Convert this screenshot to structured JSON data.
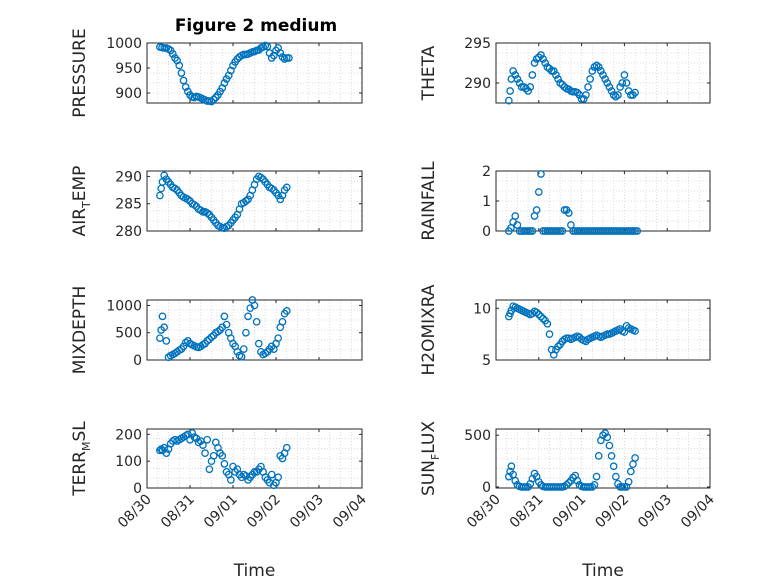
{
  "figure": {
    "title": "Figure 2 medium"
  },
  "style": {
    "marker_color": "#0072BD",
    "axis_color": "#262626",
    "grid_color": "#d3d3d3",
    "background": "#ffffff"
  },
  "chart_data": [
    {
      "id": "pressure",
      "type": "scatter",
      "ylabel": "PRESSURE",
      "xlabel": "",
      "xlim": [
        "08/30",
        "09/04"
      ],
      "ylim": [
        880,
        1000
      ],
      "yticks": [
        900,
        950,
        1000
      ],
      "xticks": [],
      "grid": true,
      "title": "Figure 2 medium",
      "x_days": [
        0.3,
        0.35,
        0.4,
        0.45,
        0.5,
        0.55,
        0.6,
        0.65,
        0.7,
        0.75,
        0.8,
        0.85,
        0.9,
        0.95,
        1.0,
        1.05,
        1.1,
        1.15,
        1.2,
        1.25,
        1.3,
        1.35,
        1.4,
        1.45,
        1.5,
        1.55,
        1.6,
        1.65,
        1.7,
        1.75,
        1.8,
        1.85,
        1.9,
        1.95,
        2.0,
        2.05,
        2.1,
        2.15,
        2.2,
        2.25,
        2.3,
        2.35,
        2.4,
        2.45,
        2.5,
        2.55,
        2.6,
        2.65,
        2.7,
        2.75,
        2.8,
        2.85,
        2.9,
        2.95,
        3.0,
        3.05,
        3.1,
        3.15,
        3.2,
        3.25,
        3.3
      ],
      "y": [
        992,
        991,
        990,
        990,
        988,
        985,
        978,
        970,
        965,
        955,
        940,
        925,
        912,
        903,
        896,
        892,
        891,
        893,
        892,
        890,
        888,
        886,
        884,
        884,
        883,
        887,
        891,
        896,
        903,
        910,
        920,
        928,
        935,
        945,
        955,
        962,
        968,
        972,
        975,
        977,
        977,
        978,
        980,
        982,
        983,
        985,
        986,
        990,
        992,
        995,
        993,
        980,
        970,
        975,
        985,
        990,
        980,
        972,
        968,
        970,
        970
      ]
    },
    {
      "id": "theta",
      "type": "scatter",
      "ylabel": "THETA",
      "xlabel": "",
      "xlim": [
        "08/30",
        "09/04"
      ],
      "ylim": [
        287.5,
        295
      ],
      "yticks": [
        290,
        295
      ],
      "xticks": [],
      "grid": true,
      "x_days": [
        0.3,
        0.33,
        0.36,
        0.4,
        0.45,
        0.5,
        0.55,
        0.6,
        0.65,
        0.7,
        0.75,
        0.8,
        0.85,
        0.9,
        0.95,
        1.0,
        1.05,
        1.1,
        1.15,
        1.2,
        1.25,
        1.3,
        1.35,
        1.4,
        1.45,
        1.5,
        1.55,
        1.6,
        1.65,
        1.7,
        1.75,
        1.8,
        1.85,
        1.9,
        1.95,
        2.0,
        2.05,
        2.1,
        2.15,
        2.2,
        2.25,
        2.3,
        2.35,
        2.4,
        2.45,
        2.5,
        2.55,
        2.6,
        2.65,
        2.7,
        2.75,
        2.8,
        2.85,
        2.9,
        2.95,
        3.0,
        3.05,
        3.1,
        3.15,
        3.2,
        3.25
      ],
      "y": [
        287.8,
        289,
        290.5,
        291.5,
        291,
        290.5,
        290,
        289.5,
        289.5,
        289.3,
        289,
        289.5,
        291,
        292.5,
        293,
        293.2,
        293.5,
        293,
        292.5,
        292,
        291.8,
        291.5,
        291.5,
        291,
        290.5,
        290,
        289.8,
        289.5,
        289.3,
        289.2,
        289,
        288.9,
        288.9,
        288.8,
        288.5,
        288,
        288,
        288.5,
        289.5,
        290.5,
        291.5,
        292,
        292.2,
        292,
        291.5,
        291,
        290.5,
        290,
        289.5,
        289,
        288.5,
        288.3,
        288.5,
        289.5,
        290,
        291,
        290,
        289,
        288.5,
        288.5,
        288.8
      ]
    },
    {
      "id": "air_temp",
      "type": "scatter",
      "ylabel": "AIR_TEMP",
      "xlabel": "",
      "xlim": [
        "08/30",
        "09/04"
      ],
      "ylim": [
        280,
        291
      ],
      "yticks": [
        280,
        285,
        290
      ],
      "xticks": [],
      "grid": true,
      "x_days": [
        0.3,
        0.33,
        0.36,
        0.4,
        0.45,
        0.5,
        0.55,
        0.6,
        0.65,
        0.7,
        0.75,
        0.8,
        0.85,
        0.9,
        0.95,
        1.0,
        1.05,
        1.1,
        1.15,
        1.2,
        1.25,
        1.3,
        1.35,
        1.4,
        1.45,
        1.5,
        1.55,
        1.6,
        1.65,
        1.7,
        1.75,
        1.8,
        1.85,
        1.9,
        1.95,
        2.0,
        2.05,
        2.1,
        2.15,
        2.2,
        2.25,
        2.3,
        2.35,
        2.4,
        2.45,
        2.5,
        2.55,
        2.6,
        2.65,
        2.7,
        2.75,
        2.8,
        2.85,
        2.9,
        2.95,
        3.0,
        3.05,
        3.1,
        3.15,
        3.2,
        3.25
      ],
      "y": [
        286.5,
        287.8,
        289,
        290.2,
        289.5,
        289,
        288.5,
        288,
        287.8,
        287.5,
        287,
        286.5,
        286.2,
        286,
        285.8,
        285.5,
        285,
        284.8,
        284.5,
        284,
        283.8,
        283.5,
        283.5,
        283.3,
        283,
        282.5,
        282,
        281.5,
        281,
        280.8,
        280.6,
        280.5,
        280.8,
        281,
        281.5,
        282,
        282.5,
        283,
        284,
        285,
        285.2,
        285.5,
        285.8,
        286.5,
        287.5,
        288.5,
        289.5,
        290,
        289.8,
        289.5,
        289,
        288.5,
        288,
        287.8,
        287.5,
        287,
        286.5,
        285.8,
        286.5,
        287.5,
        288
      ]
    },
    {
      "id": "rainfall",
      "type": "scatter",
      "ylabel": "RAINFALL",
      "xlabel": "",
      "xlim": [
        "08/30",
        "09/04"
      ],
      "ylim": [
        0,
        2
      ],
      "yticks": [
        0,
        1,
        2
      ],
      "xticks": [],
      "grid": true,
      "x_days": [
        0.3,
        0.35,
        0.4,
        0.45,
        0.5,
        0.55,
        0.6,
        0.65,
        0.7,
        0.75,
        0.8,
        0.85,
        0.9,
        0.95,
        1.0,
        1.05,
        1.1,
        1.15,
        1.2,
        1.25,
        1.3,
        1.35,
        1.4,
        1.45,
        1.5,
        1.55,
        1.6,
        1.65,
        1.7,
        1.75,
        1.8,
        1.85,
        1.9,
        1.95,
        2.0,
        2.05,
        2.1,
        2.15,
        2.2,
        2.25,
        2.3,
        2.35,
        2.4,
        2.45,
        2.5,
        2.55,
        2.6,
        2.65,
        2.7,
        2.75,
        2.8,
        2.85,
        2.9,
        2.95,
        3.0,
        3.05,
        3.1,
        3.15,
        3.2,
        3.25,
        3.3
      ],
      "y": [
        0,
        0.1,
        0.3,
        0.5,
        0.2,
        0,
        0,
        0,
        0,
        0,
        0,
        0,
        0.5,
        0.7,
        1.3,
        1.9,
        0,
        0,
        0,
        0,
        0,
        0,
        0,
        0,
        0,
        0,
        0.7,
        0.7,
        0.6,
        0.2,
        0,
        0,
        0,
        0,
        0,
        0,
        0,
        0,
        0,
        0,
        0,
        0,
        0,
        0,
        0,
        0,
        0,
        0,
        0,
        0,
        0,
        0,
        0,
        0,
        0,
        0,
        0,
        0,
        0,
        0,
        0
      ]
    },
    {
      "id": "mixdepth",
      "type": "scatter",
      "ylabel": "MIXDEPTH",
      "xlabel": "",
      "xlim": [
        "08/30",
        "09/04"
      ],
      "ylim": [
        0,
        1100
      ],
      "yticks": [
        0,
        500,
        1000
      ],
      "xticks": [],
      "grid": true,
      "x_days": [
        0.3,
        0.33,
        0.36,
        0.4,
        0.45,
        0.5,
        0.55,
        0.6,
        0.65,
        0.7,
        0.75,
        0.8,
        0.85,
        0.9,
        0.95,
        1.0,
        1.05,
        1.1,
        1.15,
        1.2,
        1.25,
        1.3,
        1.35,
        1.4,
        1.45,
        1.5,
        1.55,
        1.6,
        1.65,
        1.7,
        1.75,
        1.8,
        1.85,
        1.9,
        1.95,
        2.0,
        2.05,
        2.1,
        2.15,
        2.2,
        2.25,
        2.3,
        2.35,
        2.4,
        2.45,
        2.5,
        2.55,
        2.6,
        2.65,
        2.7,
        2.75,
        2.8,
        2.85,
        2.9,
        2.95,
        3.0,
        3.05,
        3.1,
        3.15,
        3.2,
        3.25
      ],
      "y": [
        400,
        550,
        800,
        600,
        350,
        50,
        80,
        100,
        120,
        150,
        180,
        200,
        250,
        320,
        350,
        300,
        280,
        260,
        240,
        230,
        250,
        280,
        300,
        350,
        380,
        420,
        450,
        500,
        520,
        550,
        600,
        800,
        650,
        500,
        400,
        300,
        250,
        150,
        80,
        60,
        200,
        500,
        800,
        950,
        1100,
        1000,
        700,
        300,
        150,
        100,
        120,
        150,
        200,
        250,
        200,
        300,
        400,
        600,
        700,
        850,
        900
      ]
    },
    {
      "id": "h2omixra",
      "type": "scatter",
      "ylabel": "H2OMIXRA",
      "xlabel": "",
      "xlim": [
        "08/30",
        "09/04"
      ],
      "ylim": [
        5,
        10.8
      ],
      "yticks": [
        5,
        10
      ],
      "xticks": [],
      "grid": true,
      "x_days": [
        0.3,
        0.33,
        0.36,
        0.4,
        0.45,
        0.5,
        0.55,
        0.6,
        0.65,
        0.7,
        0.75,
        0.8,
        0.85,
        0.9,
        0.95,
        1.0,
        1.05,
        1.1,
        1.15,
        1.2,
        1.25,
        1.3,
        1.35,
        1.4,
        1.45,
        1.5,
        1.55,
        1.6,
        1.65,
        1.7,
        1.75,
        1.8,
        1.85,
        1.9,
        1.95,
        2.0,
        2.05,
        2.1,
        2.15,
        2.2,
        2.25,
        2.3,
        2.35,
        2.4,
        2.45,
        2.5,
        2.55,
        2.6,
        2.65,
        2.7,
        2.75,
        2.8,
        2.85,
        2.9,
        2.95,
        3.0,
        3.05,
        3.1,
        3.15,
        3.2,
        3.25
      ],
      "y": [
        9.2,
        9.5,
        9.8,
        10.2,
        10.1,
        10,
        9.9,
        9.8,
        9.7,
        9.6,
        9.5,
        9.4,
        9.5,
        9.7,
        9.6,
        9.4,
        9.2,
        9,
        8.8,
        8.5,
        7.5,
        6,
        5.5,
        6,
        6.3,
        6.5,
        6.8,
        7,
        7.1,
        7.1,
        7,
        7.1,
        7.2,
        7.3,
        7.2,
        7,
        6.9,
        6.8,
        7,
        7.1,
        7.2,
        7.3,
        7.4,
        7.3,
        7.2,
        7.3,
        7.4,
        7.5,
        7.5,
        7.6,
        7.7,
        7.8,
        7.9,
        8,
        7.8,
        7.7,
        8.3,
        8.1,
        8,
        7.9,
        7.8
      ]
    },
    {
      "id": "terr_msl",
      "type": "scatter",
      "ylabel": "TERR_MSL",
      "xlabel": "Time",
      "xlim": [
        "08/30",
        "09/04"
      ],
      "ylim": [
        0,
        220
      ],
      "yticks": [
        0,
        100,
        200
      ],
      "xticks": [
        "08/30",
        "08/31",
        "09/01",
        "09/02",
        "09/03",
        "09/04"
      ],
      "grid": true,
      "x_days": [
        0.3,
        0.33,
        0.36,
        0.4,
        0.45,
        0.5,
        0.55,
        0.6,
        0.65,
        0.7,
        0.75,
        0.8,
        0.85,
        0.9,
        0.95,
        1.0,
        1.05,
        1.1,
        1.15,
        1.2,
        1.25,
        1.3,
        1.35,
        1.4,
        1.45,
        1.5,
        1.55,
        1.6,
        1.65,
        1.7,
        1.75,
        1.8,
        1.85,
        1.9,
        1.95,
        2.0,
        2.05,
        2.1,
        2.15,
        2.2,
        2.25,
        2.3,
        2.35,
        2.4,
        2.45,
        2.5,
        2.55,
        2.6,
        2.65,
        2.7,
        2.75,
        2.8,
        2.85,
        2.9,
        2.95,
        3.0,
        3.05,
        3.1,
        3.15,
        3.2,
        3.25
      ],
      "y": [
        140,
        145,
        140,
        150,
        130,
        145,
        165,
        175,
        180,
        175,
        180,
        185,
        190,
        195,
        200,
        180,
        205,
        190,
        185,
        170,
        175,
        160,
        130,
        180,
        70,
        100,
        120,
        170,
        150,
        130,
        120,
        90,
        60,
        50,
        30,
        80,
        60,
        70,
        50,
        40,
        50,
        45,
        30,
        40,
        50,
        60,
        60,
        70,
        80,
        60,
        40,
        30,
        20,
        50,
        10,
        20,
        40,
        120,
        110,
        130,
        150
      ]
    },
    {
      "id": "sun_flux",
      "type": "scatter",
      "ylabel": "SUN_FLUX",
      "xlabel": "Time",
      "xlim": [
        "08/30",
        "09/04"
      ],
      "ylim": [
        -10,
        560
      ],
      "yticks": [
        0,
        500
      ],
      "xticks": [
        "08/30",
        "08/31",
        "09/01",
        "09/02",
        "09/03",
        "09/04"
      ],
      "grid": true,
      "x_days": [
        0.3,
        0.33,
        0.36,
        0.4,
        0.45,
        0.5,
        0.55,
        0.6,
        0.65,
        0.7,
        0.75,
        0.8,
        0.85,
        0.9,
        0.95,
        1.0,
        1.05,
        1.1,
        1.15,
        1.2,
        1.25,
        1.3,
        1.35,
        1.4,
        1.45,
        1.5,
        1.55,
        1.6,
        1.65,
        1.7,
        1.75,
        1.8,
        1.85,
        1.9,
        1.95,
        2.0,
        2.05,
        2.1,
        2.15,
        2.2,
        2.25,
        2.3,
        2.35,
        2.4,
        2.45,
        2.5,
        2.55,
        2.6,
        2.65,
        2.7,
        2.75,
        2.8,
        2.85,
        2.9,
        2.95,
        3.0,
        3.05,
        3.1,
        3.15,
        3.2,
        3.25
      ],
      "y": [
        100,
        150,
        200,
        120,
        60,
        20,
        5,
        0,
        0,
        0,
        0,
        30,
        80,
        130,
        100,
        50,
        20,
        5,
        0,
        0,
        0,
        0,
        0,
        0,
        0,
        0,
        0,
        5,
        20,
        40,
        60,
        90,
        110,
        60,
        20,
        5,
        0,
        0,
        0,
        0,
        0,
        20,
        100,
        300,
        450,
        500,
        520,
        480,
        400,
        300,
        200,
        100,
        30,
        0,
        0,
        0,
        0,
        50,
        150,
        220,
        280
      ]
    }
  ]
}
